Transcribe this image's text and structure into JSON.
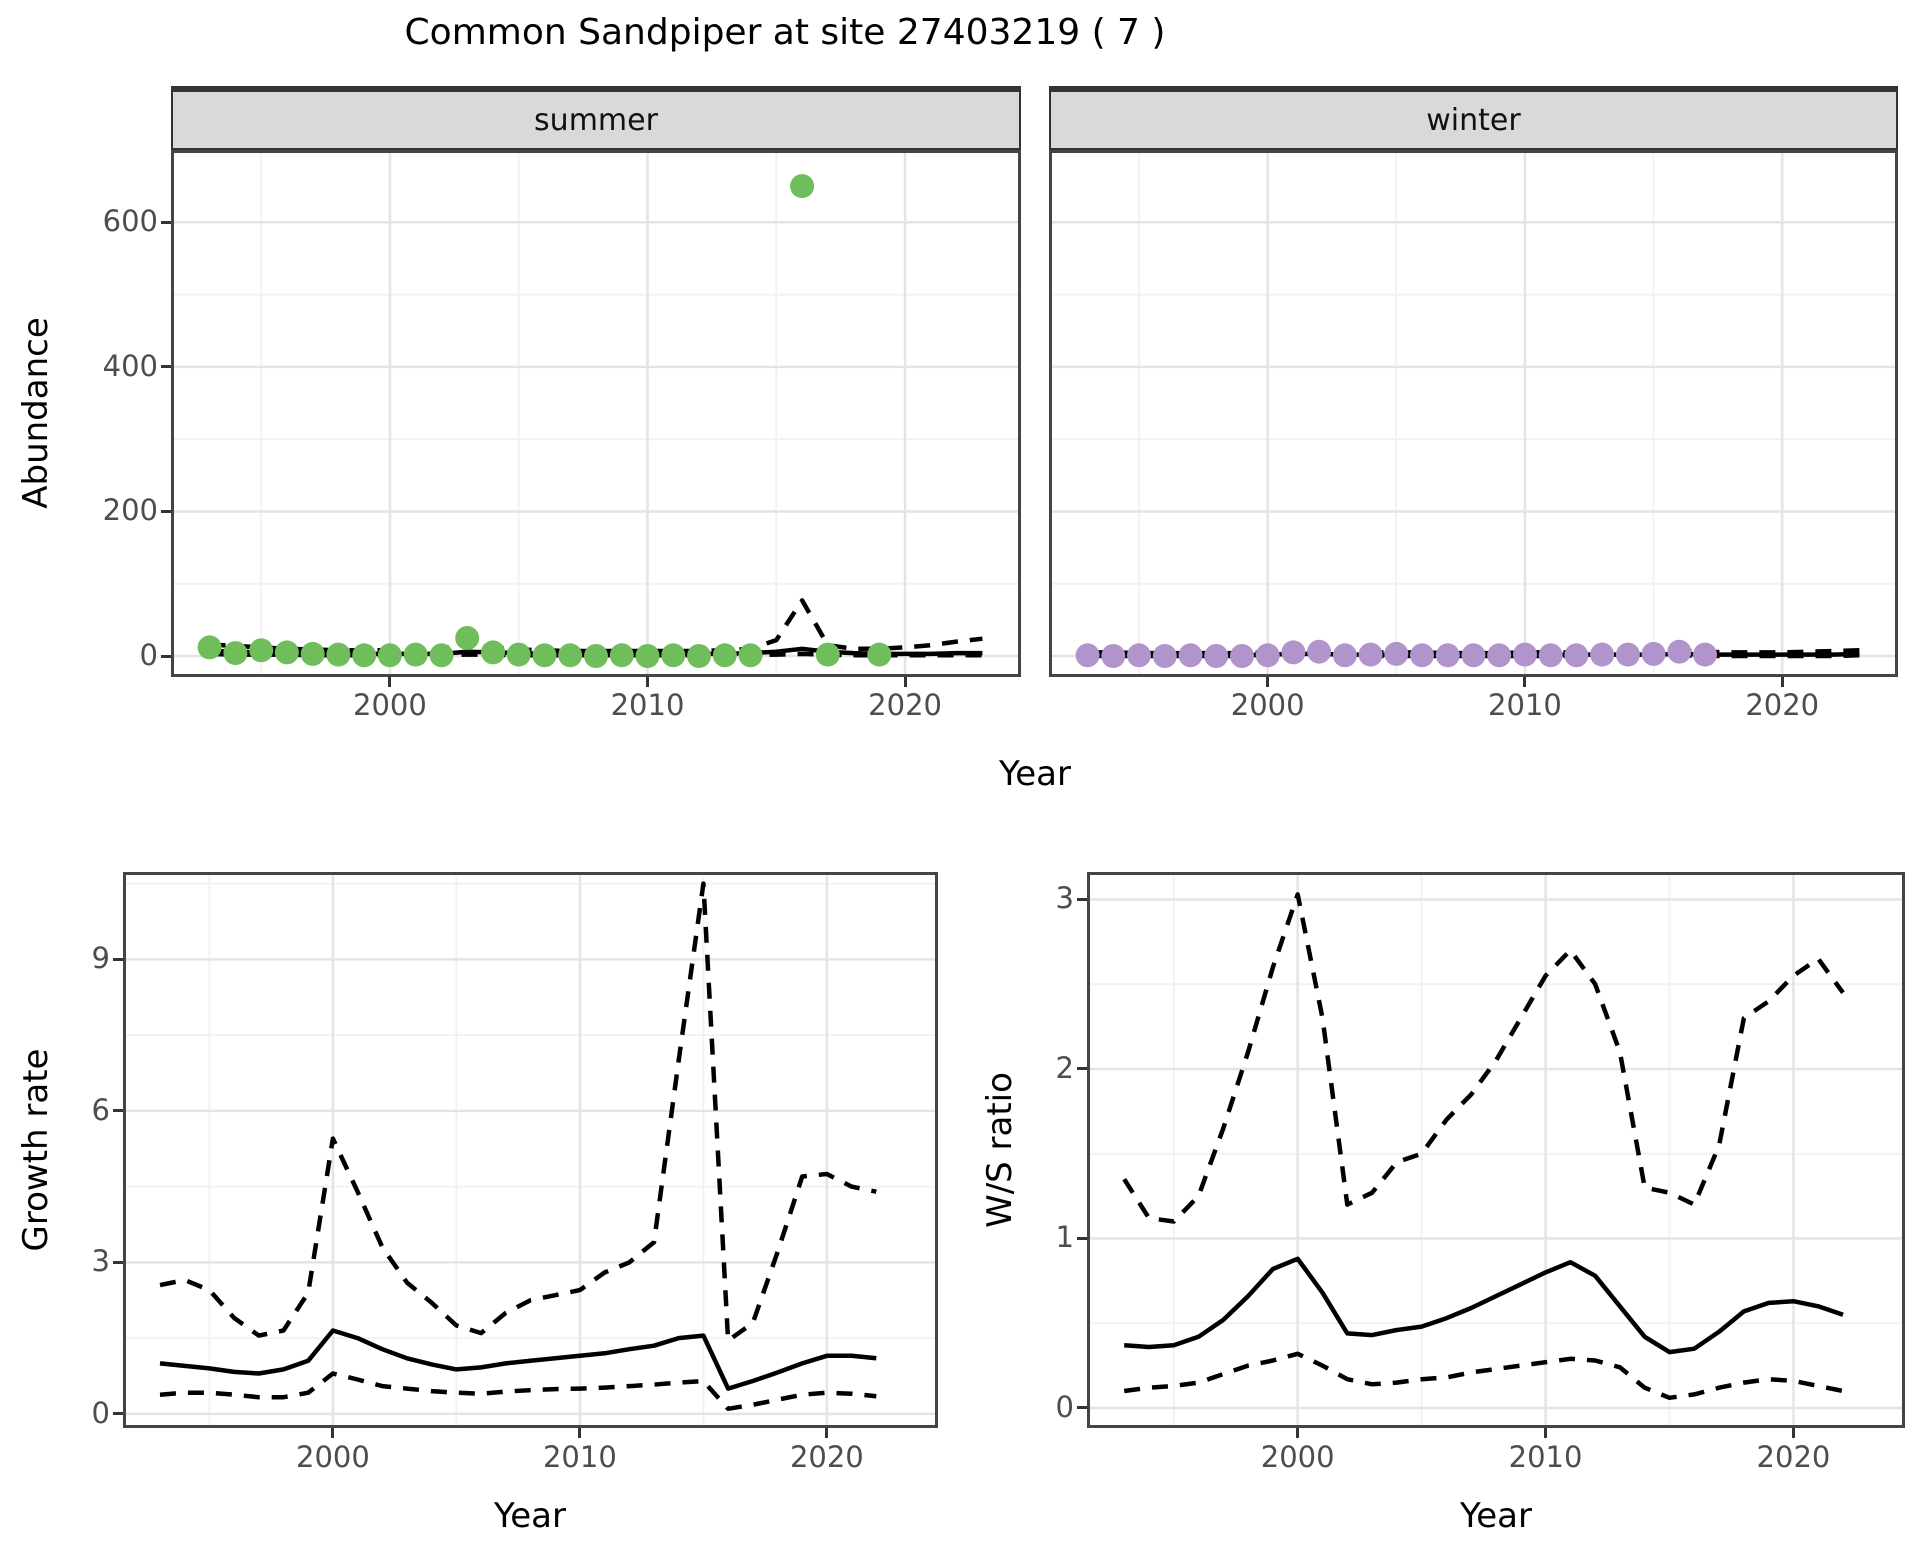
{
  "title": "Common Sandpiper at site 27403219 ( 7 )",
  "axis_labels": {
    "top_y": "Abundance",
    "top_x": "Year",
    "growth_y": "Growth rate",
    "growth_x": "Year",
    "ws_y": "W/S ratio",
    "ws_x": "Year"
  },
  "facets": {
    "summer": "summer",
    "winter": "winter"
  },
  "colors": {
    "summer_point": "#6fbe5b",
    "winter_point": "#b294cc",
    "line": "#000000",
    "grid_major": "#e4e4e4",
    "grid_minor": "#f2f2f2",
    "panel_border": "#444444",
    "strip_bg": "#d9d9d9",
    "tick_text": "#4d4d4d",
    "background": "#ffffff"
  },
  "chart_data": [
    {
      "id": "summer",
      "type": "scatter",
      "facet_label": "summer",
      "xlabel": "Year",
      "ylabel": "Abundance",
      "x_range": [
        1991.5,
        2024.5
      ],
      "y_range": [
        -29,
        700
      ],
      "x_major_ticks": [
        2000,
        2010,
        2020
      ],
      "x_minor_ticks": [
        1995,
        2005,
        2015
      ],
      "y_major_ticks": [
        0,
        200,
        400,
        600
      ],
      "y_minor_ticks": [
        100,
        300,
        500,
        700
      ],
      "points": {
        "series_name": "observed counts",
        "x": [
          1993,
          1994,
          1995,
          1996,
          1997,
          1998,
          1999,
          2000,
          2001,
          2002,
          2003,
          2004,
          2005,
          2006,
          2007,
          2008,
          2009,
          2010,
          2011,
          2012,
          2013,
          2014,
          2016,
          2017,
          2019
        ],
        "y": [
          12,
          4,
          8,
          5,
          3,
          2,
          1,
          1,
          2,
          1,
          25,
          5,
          2,
          1,
          1,
          0,
          1,
          0,
          1,
          0,
          1,
          1,
          650,
          2,
          2
        ]
      },
      "lines": [
        {
          "name": "model fit",
          "style": "solid",
          "x": [
            1993,
            1994,
            1995,
            1996,
            1997,
            1998,
            1999,
            2000,
            2001,
            2002,
            2003,
            2004,
            2005,
            2006,
            2007,
            2008,
            2009,
            2010,
            2011,
            2012,
            2013,
            2014,
            2015,
            2016,
            2017,
            2018,
            2019,
            2020,
            2021,
            2022,
            2023
          ],
          "y": [
            7,
            6,
            5,
            5,
            4,
            4,
            3,
            3,
            3,
            3,
            6,
            5,
            4,
            3,
            3,
            3,
            3,
            3,
            3,
            3,
            3,
            4,
            6,
            10,
            6,
            4,
            3,
            3,
            3,
            4,
            4
          ]
        },
        {
          "name": "upper CI",
          "style": "dashed",
          "x": [
            1993,
            1994,
            1995,
            1996,
            1997,
            1998,
            1999,
            2000,
            2001,
            2002,
            2003,
            2004,
            2005,
            2006,
            2007,
            2008,
            2009,
            2010,
            2011,
            2012,
            2013,
            2014,
            2015,
            2016,
            2017,
            2018,
            2019,
            2020,
            2021,
            2022,
            2023
          ],
          "y": [
            16,
            14,
            12,
            10,
            9,
            8,
            8,
            8,
            8,
            9,
            20,
            12,
            9,
            8,
            7,
            7,
            7,
            7,
            7,
            7,
            8,
            10,
            22,
            77,
            15,
            10,
            10,
            12,
            15,
            20,
            24
          ]
        },
        {
          "name": "lower CI",
          "style": "dashed",
          "x": [
            1993,
            1994,
            1995,
            1996,
            1997,
            1998,
            1999,
            2000,
            2001,
            2002,
            2003,
            2004,
            2005,
            2006,
            2007,
            2008,
            2009,
            2010,
            2011,
            2012,
            2013,
            2014,
            2015,
            2016,
            2017,
            2018,
            2019,
            2020,
            2021,
            2022,
            2023
          ],
          "y": [
            3,
            2,
            2,
            2,
            1,
            1,
            1,
            1,
            1,
            1,
            2,
            2,
            1,
            1,
            1,
            1,
            1,
            1,
            1,
            1,
            1,
            1,
            2,
            3,
            2,
            1,
            1,
            1,
            1,
            1,
            1
          ]
        }
      ]
    },
    {
      "id": "winter",
      "type": "scatter",
      "facet_label": "winter",
      "xlabel": "Year",
      "ylabel": "Abundance",
      "x_range": [
        1991.5,
        2024.5
      ],
      "y_range": [
        -29,
        700
      ],
      "x_major_ticks": [
        2000,
        2010,
        2020
      ],
      "x_minor_ticks": [
        1995,
        2005,
        2015
      ],
      "y_major_ticks": [
        0,
        200,
        400,
        600
      ],
      "y_minor_ticks": [
        100,
        300,
        500,
        700
      ],
      "points": {
        "series_name": "observed counts",
        "x": [
          1993,
          1994,
          1995,
          1996,
          1997,
          1998,
          1999,
          2000,
          2001,
          2002,
          2003,
          2004,
          2005,
          2006,
          2007,
          2008,
          2009,
          2010,
          2011,
          2012,
          2013,
          2014,
          2015,
          2016,
          2017
        ],
        "y": [
          1,
          0,
          1,
          0,
          1,
          0,
          0,
          1,
          5,
          6,
          1,
          2,
          3,
          1,
          1,
          1,
          1,
          2,
          1,
          1,
          2,
          2,
          3,
          6,
          2
        ]
      },
      "lines": [
        {
          "name": "model fit",
          "style": "solid",
          "x": [
            1993,
            1994,
            1995,
            1996,
            1997,
            1998,
            1999,
            2000,
            2001,
            2002,
            2003,
            2004,
            2005,
            2006,
            2007,
            2008,
            2009,
            2010,
            2011,
            2012,
            2013,
            2014,
            2015,
            2016,
            2017,
            2018,
            2019,
            2020,
            2021,
            2022,
            2023
          ],
          "y": [
            2,
            2,
            1,
            1,
            1,
            1,
            1,
            2,
            3,
            3,
            2,
            2,
            2,
            2,
            1,
            1,
            1,
            2,
            2,
            2,
            2,
            2,
            2,
            3,
            2,
            2,
            2,
            2,
            2,
            2,
            3
          ]
        },
        {
          "name": "upper CI",
          "style": "dashed",
          "x": [
            1993,
            1994,
            1995,
            1996,
            1997,
            1998,
            1999,
            2000,
            2001,
            2002,
            2003,
            2004,
            2005,
            2006,
            2007,
            2008,
            2009,
            2010,
            2011,
            2012,
            2013,
            2014,
            2015,
            2016,
            2017,
            2018,
            2019,
            2020,
            2021,
            2022,
            2023
          ],
          "y": [
            5,
            5,
            4,
            4,
            4,
            4,
            4,
            5,
            7,
            8,
            6,
            5,
            5,
            5,
            4,
            4,
            4,
            5,
            5,
            5,
            5,
            5,
            6,
            8,
            6,
            5,
            5,
            5,
            6,
            7,
            8
          ]
        },
        {
          "name": "lower CI",
          "style": "dashed",
          "x": [
            1993,
            1994,
            1995,
            1996,
            1997,
            1998,
            1999,
            2000,
            2001,
            2002,
            2003,
            2004,
            2005,
            2006,
            2007,
            2008,
            2009,
            2010,
            2011,
            2012,
            2013,
            2014,
            2015,
            2016,
            2017,
            2018,
            2019,
            2020,
            2021,
            2022,
            2023
          ],
          "y": [
            0,
            0,
            0,
            0,
            0,
            0,
            0,
            0,
            1,
            1,
            0,
            0,
            0,
            0,
            0,
            0,
            0,
            0,
            0,
            0,
            0,
            0,
            1,
            1,
            0,
            0,
            0,
            0,
            0,
            0,
            1
          ]
        }
      ]
    },
    {
      "id": "growth",
      "type": "line",
      "xlabel": "Year",
      "ylabel": "Growth rate",
      "x_range": [
        1991.5,
        2024.5
      ],
      "y_range": [
        -0.28,
        10.73
      ],
      "x_major_ticks": [
        2000,
        2010,
        2020
      ],
      "x_minor_ticks": [
        1995,
        2005,
        2015
      ],
      "y_major_ticks": [
        0,
        3,
        6,
        9
      ],
      "y_minor_ticks": [
        1.5,
        4.5,
        7.5,
        10.5
      ],
      "lines": [
        {
          "name": "growth rate estimate",
          "style": "solid",
          "x": [
            1993,
            1994,
            1995,
            1996,
            1997,
            1998,
            1999,
            2000,
            2001,
            2002,
            2003,
            2004,
            2005,
            2006,
            2007,
            2008,
            2009,
            2010,
            2011,
            2012,
            2013,
            2014,
            2015,
            2016,
            2017,
            2018,
            2019,
            2020,
            2021,
            2022
          ],
          "y": [
            1.0,
            0.95,
            0.9,
            0.83,
            0.8,
            0.88,
            1.05,
            1.65,
            1.5,
            1.28,
            1.1,
            0.98,
            0.88,
            0.92,
            1.0,
            1.05,
            1.1,
            1.15,
            1.2,
            1.28,
            1.35,
            1.5,
            1.55,
            0.5,
            0.65,
            0.82,
            1.0,
            1.15,
            1.15,
            1.1
          ]
        },
        {
          "name": "upper CI",
          "style": "dashed",
          "x": [
            1993,
            1994,
            1995,
            1996,
            1997,
            1998,
            1999,
            2000,
            2001,
            2002,
            2003,
            2004,
            2005,
            2006,
            2007,
            2008,
            2009,
            2010,
            2011,
            2012,
            2013,
            2014,
            2015,
            2016,
            2017,
            2018,
            2019,
            2020,
            2021,
            2022
          ],
          "y": [
            2.55,
            2.65,
            2.45,
            1.9,
            1.55,
            1.65,
            2.4,
            5.45,
            4.4,
            3.3,
            2.6,
            2.2,
            1.75,
            1.6,
            2.0,
            2.25,
            2.35,
            2.45,
            2.8,
            3.0,
            3.4,
            7.0,
            10.5,
            1.45,
            1.8,
            3.2,
            4.7,
            4.75,
            4.5,
            4.4
          ]
        },
        {
          "name": "lower CI",
          "style": "dashed",
          "x": [
            1993,
            1994,
            1995,
            1996,
            1997,
            1998,
            1999,
            2000,
            2001,
            2002,
            2003,
            2004,
            2005,
            2006,
            2007,
            2008,
            2009,
            2010,
            2011,
            2012,
            2013,
            2014,
            2015,
            2016,
            2017,
            2018,
            2019,
            2020,
            2021,
            2022
          ],
          "y": [
            0.38,
            0.42,
            0.42,
            0.38,
            0.33,
            0.33,
            0.42,
            0.8,
            0.68,
            0.55,
            0.5,
            0.45,
            0.42,
            0.4,
            0.44,
            0.47,
            0.49,
            0.5,
            0.52,
            0.55,
            0.58,
            0.62,
            0.65,
            0.1,
            0.18,
            0.28,
            0.38,
            0.42,
            0.4,
            0.35
          ]
        }
      ]
    },
    {
      "id": "ws",
      "type": "line",
      "xlabel": "Year",
      "ylabel": "W/S ratio",
      "x_range": [
        1991.5,
        2024.5
      ],
      "y_range": [
        -0.118,
        3.162
      ],
      "x_major_ticks": [
        2000,
        2010,
        2020
      ],
      "x_minor_ticks": [
        1995,
        2005,
        2015
      ],
      "y_major_ticks": [
        0,
        1,
        2,
        3
      ],
      "y_minor_ticks": [
        0.5,
        1.5,
        2.5
      ],
      "lines": [
        {
          "name": "W/S ratio estimate",
          "style": "solid",
          "x": [
            1993,
            1994,
            1995,
            1996,
            1997,
            1998,
            1999,
            2000,
            2001,
            2002,
            2003,
            2004,
            2005,
            2006,
            2007,
            2008,
            2009,
            2010,
            2011,
            2012,
            2013,
            2014,
            2015,
            2016,
            2017,
            2018,
            2019,
            2020,
            2021,
            2022
          ],
          "y": [
            0.37,
            0.36,
            0.37,
            0.42,
            0.52,
            0.66,
            0.82,
            0.88,
            0.68,
            0.44,
            0.43,
            0.46,
            0.48,
            0.53,
            0.59,
            0.66,
            0.73,
            0.8,
            0.86,
            0.78,
            0.6,
            0.42,
            0.33,
            0.35,
            0.45,
            0.57,
            0.62,
            0.63,
            0.6,
            0.55
          ]
        },
        {
          "name": "upper CI",
          "style": "dashed",
          "x": [
            1993,
            1994,
            1995,
            1996,
            1997,
            1998,
            1999,
            2000,
            2001,
            2002,
            2003,
            2004,
            2005,
            2006,
            2007,
            2008,
            2009,
            2010,
            2011,
            2012,
            2013,
            2014,
            2015,
            2016,
            2017,
            2018,
            2019,
            2020,
            2021,
            2022
          ],
          "y": [
            1.35,
            1.12,
            1.1,
            1.25,
            1.65,
            2.1,
            2.6,
            3.03,
            2.3,
            1.2,
            1.27,
            1.45,
            1.5,
            1.7,
            1.85,
            2.05,
            2.3,
            2.55,
            2.7,
            2.5,
            2.1,
            1.3,
            1.27,
            1.2,
            1.55,
            2.3,
            2.4,
            2.55,
            2.65,
            2.45
          ]
        },
        {
          "name": "lower CI",
          "style": "dashed",
          "x": [
            1993,
            1994,
            1995,
            1996,
            1997,
            1998,
            1999,
            2000,
            2001,
            2002,
            2003,
            2004,
            2005,
            2006,
            2007,
            2008,
            2009,
            2010,
            2011,
            2012,
            2013,
            2014,
            2015,
            2016,
            2017,
            2018,
            2019,
            2020,
            2021,
            2022
          ],
          "y": [
            0.1,
            0.12,
            0.13,
            0.15,
            0.2,
            0.25,
            0.28,
            0.32,
            0.25,
            0.17,
            0.14,
            0.15,
            0.17,
            0.18,
            0.21,
            0.23,
            0.25,
            0.27,
            0.29,
            0.28,
            0.24,
            0.12,
            0.06,
            0.08,
            0.12,
            0.15,
            0.17,
            0.16,
            0.13,
            0.1
          ]
        }
      ]
    }
  ]
}
